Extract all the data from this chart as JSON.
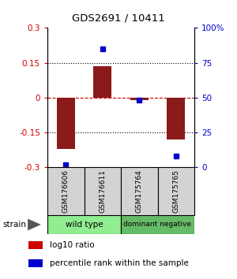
{
  "title": "GDS2691 / 10411",
  "samples": [
    "GSM176606",
    "GSM176611",
    "GSM175764",
    "GSM175765"
  ],
  "log10_ratio": [
    -0.22,
    0.135,
    -0.01,
    -0.18
  ],
  "percentile_rank": [
    2,
    85,
    48,
    8
  ],
  "ylim": [
    -0.3,
    0.3
  ],
  "yticks_left": [
    -0.3,
    -0.15,
    0,
    0.15,
    0.3
  ],
  "yticks_right": [
    0,
    25,
    50,
    75,
    100
  ],
  "bar_color": "#8B1A1A",
  "dot_color": "#0000CC",
  "hline_color": "#CC0000",
  "bg_color": "#ffffff",
  "group1_name": "wild type",
  "group1_color": "#90ee90",
  "group2_name": "dominant negative",
  "group2_color": "#66bb66",
  "label_log10": "log10 ratio",
  "label_pct": "percentile rank within the sample",
  "strain_label": "strain"
}
